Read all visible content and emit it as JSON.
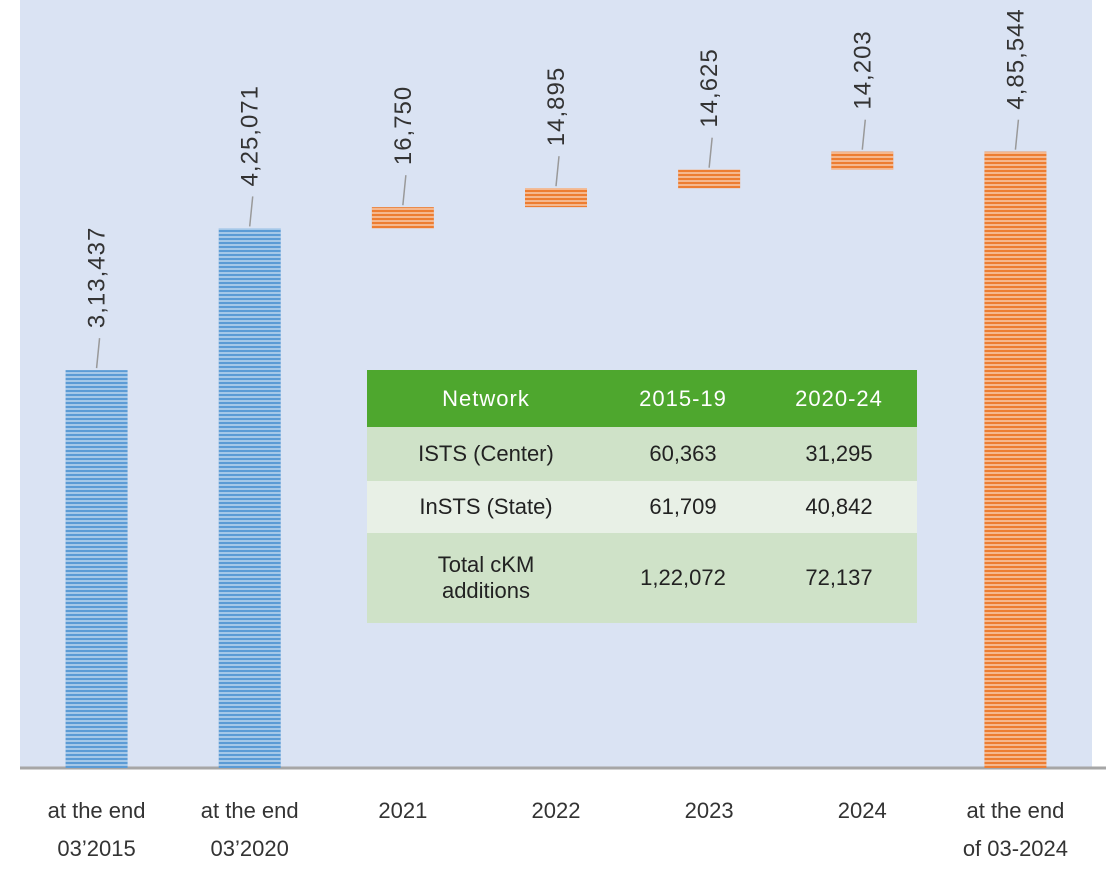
{
  "chart_data": {
    "type": "waterfall",
    "categories": [
      "at the end\n03’2015",
      "at the end\n03’2020",
      "2021",
      "2022",
      "2023",
      "2024",
      "at the end\nof 03-2024"
    ],
    "values": [
      313437,
      425071,
      16750,
      14895,
      14625,
      14203,
      485544
    ],
    "value_labels": [
      "3,13,437",
      "4,25,071",
      "16,750",
      "14,895",
      "14,625",
      "14,203",
      "4,85,544"
    ],
    "totals": [
      true,
      true,
      false,
      false,
      false,
      false,
      true
    ],
    "colors": [
      "#5b9bd5",
      "#5b9bd5",
      "#ed7d31",
      "#ed7d31",
      "#ed7d31",
      "#ed7d31",
      "#ed7d31"
    ],
    "ylim": [
      0,
      605000
    ]
  },
  "table": {
    "headers": [
      "Network",
      "2015-19",
      "2020-24"
    ],
    "rows": [
      [
        "ISTS (Center)",
        "60,363",
        "31,295"
      ],
      [
        "InSTS (State)",
        "61,709",
        "40,842"
      ],
      [
        "Total cKM additions",
        "1,22,072",
        "72,137"
      ]
    ]
  }
}
